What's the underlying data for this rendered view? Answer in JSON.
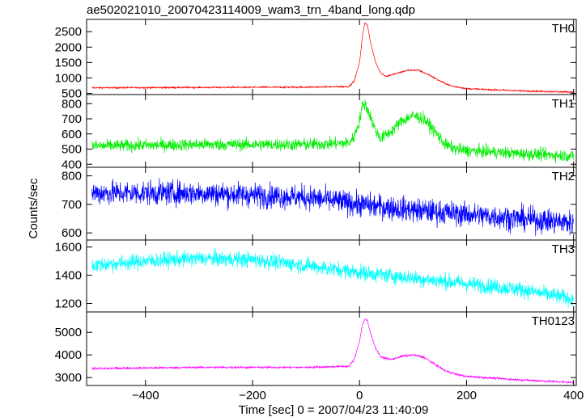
{
  "chart_data": {
    "type": "line",
    "title": "ae502021010_20070423114009_wam3_trn_4band_long.qdp",
    "xlabel": "Time [sec] 0 = 2007/04/23 11:40:09",
    "ylabel": "Counts/sec",
    "xlim": [
      -510,
      405
    ],
    "xticks": [
      -400,
      -200,
      0,
      200,
      400
    ],
    "grid": false,
    "series": [
      {
        "name": "TH0",
        "color": "#ff0000",
        "ylim": [
          460,
          2900
        ],
        "yticks": [
          500,
          1000,
          1500,
          2000,
          2500
        ],
        "noise": 25,
        "x": [
          -500,
          -300,
          -100,
          -20,
          -10,
          0,
          5,
          10,
          15,
          20,
          30,
          40,
          50,
          70,
          90,
          110,
          130,
          150,
          170,
          200,
          300,
          400
        ],
        "y": [
          680,
          690,
          700,
          720,
          900,
          1500,
          2300,
          2800,
          2700,
          2200,
          1500,
          1150,
          1050,
          1150,
          1250,
          1250,
          1100,
          900,
          750,
          650,
          580,
          540
        ]
      },
      {
        "name": "TH1",
        "color": "#00ee00",
        "ylim": [
          380,
          860
        ],
        "yticks": [
          400,
          500,
          600,
          700,
          800
        ],
        "noise": 40,
        "x": [
          -500,
          -300,
          -100,
          -20,
          -10,
          0,
          5,
          10,
          20,
          30,
          40,
          60,
          80,
          100,
          120,
          140,
          160,
          180,
          200,
          300,
          400
        ],
        "y": [
          520,
          530,
          530,
          540,
          580,
          690,
          780,
          800,
          720,
          620,
          570,
          620,
          690,
          720,
          700,
          620,
          530,
          500,
          490,
          470,
          455
        ]
      },
      {
        "name": "TH2",
        "color": "#0000ff",
        "ylim": [
          575,
          830
        ],
        "yticks": [
          600,
          700,
          800
        ],
        "noise": 42,
        "x": [
          -500,
          -300,
          -100,
          0,
          100,
          200,
          300,
          400
        ],
        "y": [
          740,
          740,
          725,
          700,
          680,
          665,
          650,
          635
        ]
      },
      {
        "name": "TH3",
        "color": "#00ffff",
        "ylim": [
          1140,
          1650
        ],
        "yticks": [
          1200,
          1400,
          1600
        ],
        "noise": 55,
        "x": [
          -500,
          -400,
          -300,
          -200,
          -100,
          0,
          100,
          200,
          300,
          400
        ],
        "y": [
          1470,
          1500,
          1520,
          1510,
          1470,
          1420,
          1380,
          1340,
          1300,
          1230
        ]
      },
      {
        "name": "TH0123",
        "color": "#ff00ff",
        "ylim": [
          2650,
          5900
        ],
        "yticks": [
          3000,
          4000,
          5000
        ],
        "noise": 45,
        "x": [
          -500,
          -300,
          -100,
          -20,
          -10,
          0,
          5,
          10,
          15,
          20,
          30,
          40,
          60,
          80,
          100,
          120,
          140,
          160,
          180,
          200,
          300,
          400
        ],
        "y": [
          3400,
          3450,
          3450,
          3500,
          3800,
          4600,
          5300,
          5600,
          5500,
          5000,
          4300,
          3900,
          3800,
          3950,
          4000,
          3900,
          3600,
          3300,
          3150,
          3050,
          2900,
          2780
        ]
      }
    ]
  }
}
